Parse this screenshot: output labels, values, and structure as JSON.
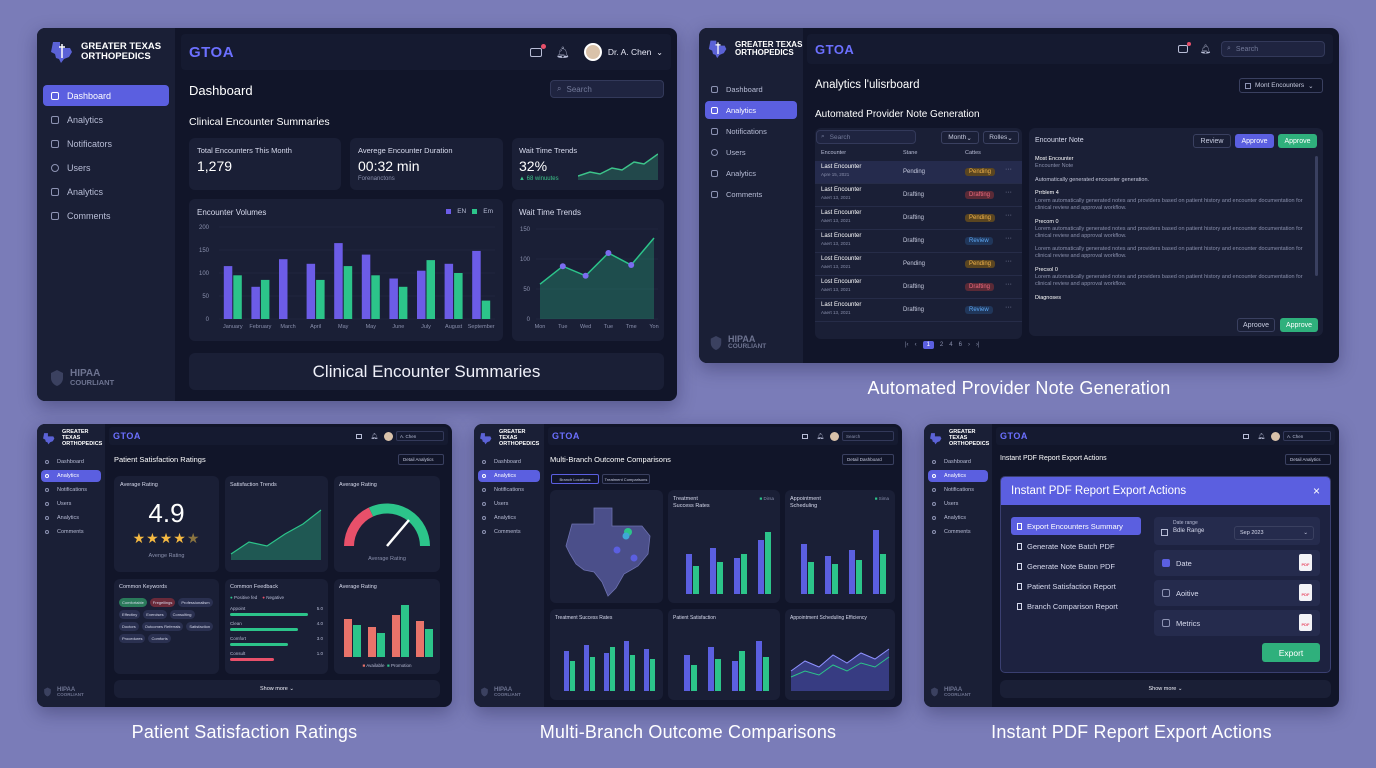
{
  "brand": {
    "line1": "GREATER TEXAS",
    "line2": "ORTHOPEDICS",
    "app": "GTOA",
    "hipaa1": "HIPAA",
    "hipaa2": "COURLIANT",
    "hipaa_small1": "HIPAA",
    "hipaa_small2": "COORLIANT"
  },
  "p1": {
    "nav": [
      "Dashboard",
      "Analytics",
      "Notificators",
      "Users",
      "Analytics",
      "Comments"
    ],
    "user": "Dr. A. Chen",
    "search": "Search",
    "title": "Dashboard",
    "section": "Clinical Encounter Summaries",
    "kpi1_label": "Total Encounters This Month",
    "kpi1_value": "1,279",
    "kpi2_label": "Averege Encounter Duration",
    "kpi2_value": "00:32 min",
    "kpi2_sub": "Forenanctons",
    "kpi3_label": "Wait Time Trends",
    "kpi3_value": "32%",
    "kpi3_sub": "▲ 68 winuutes",
    "volumes_title": "Encounter Volumes",
    "legend1": "EN",
    "legend2": "Em",
    "wait_title": "Wait Time Trends",
    "banner": "Clinical Encounter Summaries"
  },
  "p2": {
    "nav": [
      "Dashboard",
      "Analytics",
      "Notifications",
      "Users",
      "Analytics",
      "Comments"
    ],
    "search": "Search",
    "title": "Analytics l'ulisrboard",
    "filter": "Mont Encounters",
    "section": "Automated Provider Note Generation",
    "table_search": "Search",
    "month_btn": "Month",
    "roles_btn": "Rolles",
    "cols": [
      "Encounter",
      "Stane",
      "Cattes"
    ],
    "rows": [
      {
        "name": "Last Encounter",
        "date": "Apre 15, 2021",
        "stage": "Pending",
        "status": "Pending"
      },
      {
        "name": "Last Encounter",
        "date": "Aaert 13, 2021",
        "stage": "Drafting",
        "status": "Drafting"
      },
      {
        "name": "Last Encounter",
        "date": "Aaert 13, 2021",
        "stage": "Drafting",
        "status": "Pending"
      },
      {
        "name": "Last Encounter",
        "date": "Aaert 13, 2021",
        "stage": "Drafting",
        "status": "Review"
      },
      {
        "name": "Lost Encounter",
        "date": "Aaert 13, 2021",
        "stage": "Pending",
        "status": "Pending"
      },
      {
        "name": "Lost Encounter",
        "date": "Aaert 13, 2021",
        "stage": "Drafting",
        "status": "Drafting"
      },
      {
        "name": "Last Encounter",
        "date": "Aaert 13, 2021",
        "stage": "Drafting",
        "status": "Review"
      }
    ],
    "pages": [
      "1",
      "2",
      "4",
      "6"
    ],
    "note_title": "Encounter Note",
    "review": "Review",
    "approve1": "Approve",
    "approve2": "Approve",
    "note_h1": "Most Encounter",
    "note_h1b": "Encounter Note",
    "note_l1": "Automatically generated encounter generation.",
    "note_h2": "Prrblem 4",
    "note_h3": "Precom 0",
    "note_h4": "Precsol 0",
    "note_h5": "Diagnoses",
    "note_para": "Lorem automatically generated notes and providers based on patient history and encounter documentation for clinical review and approval workflow.",
    "approve_out": "Aproove",
    "approve_fill": "Approve",
    "caption": "Automated Provider Note Generation"
  },
  "p3": {
    "nav": [
      "Dashboard",
      "Analytics",
      "Notifications",
      "Users",
      "Analytics",
      "Comments"
    ],
    "user": "A. Chen",
    "title": "Patient Satisfaction Ratings",
    "filter": "Detail Analytics",
    "avg_title": "Average Rating",
    "avg_value": "4.9",
    "avg_sub": "Avenge Rating",
    "trend_title": "Satisfaction Trends",
    "gauge_title": "Average Rating",
    "gauge_sub": "Average Rating",
    "kw_title": "Common Keywords",
    "kw": [
      "Comfortable",
      "Fregellings",
      "Professionalism",
      "Effectiny",
      "Exercises",
      "Consulting",
      "Doctors",
      "Outcomes Referrals",
      "Satisfaction",
      "Procedures",
      "Comforts"
    ],
    "fb_title": "Common Feedback",
    "fb_pos": "Positive fed",
    "fb_neg": "Negative",
    "fb_rows": [
      {
        "l": "Appoint",
        "v": "5.0"
      },
      {
        "l": "Clean",
        "v": "4.0"
      },
      {
        "l": "Comfort",
        "v": "3.0"
      },
      {
        "l": "Consult",
        "v": "1.0"
      }
    ],
    "avgr_title": "Average Rating",
    "avgr_l1": "Available",
    "avgr_l2": "Promotion",
    "show_more": "Show more",
    "caption": "Patient Satisfaction Ratings"
  },
  "p4": {
    "nav": [
      "Dashboard",
      "Analytics",
      "Notifications",
      "Users",
      "Analytics",
      "Comments"
    ],
    "search": "Search",
    "title": "Multi-Branch Outcome Comparisons",
    "filter": "Detail Dashboard",
    "tab1": "Branch Locations",
    "tab2": "Treatment Comparisons",
    "c1_title": "Treatment",
    "c1_sub": "Success Rates",
    "c1_leg": "Dirsa",
    "c2_title": "Appointment",
    "c2_sub": "Scheduling",
    "c2_leg": "Sima",
    "c3_title": "Treatment Success Rates",
    "c4_title": "Patient Satisfaction",
    "c5_title": "Appointment Scheduling Efficiency",
    "caption": "Multi-Branch Outcome Comparisons"
  },
  "p5": {
    "nav": [
      "Dashboard",
      "Analytics",
      "Notifications",
      "Users",
      "Analytics",
      "Comments"
    ],
    "title": "Instant PDF Report Export Actions",
    "filter": "Detail Analytics",
    "modal_title": "Instant PDF Report Export Actions",
    "reports": [
      "Export Encounters Summary",
      "Generate Note Batch PDF",
      "Generate Note Baton PDF",
      "Patient Satisfaction Report",
      "Branch Comparison Report"
    ],
    "date_label": "Date range",
    "date_from": "Bdle Range",
    "date_to": "Sep 2023",
    "options": [
      "Date",
      "Aoitive",
      "Metrics"
    ],
    "export": "Export",
    "show_more": "Show more",
    "caption": "Instant PDF Report Export Actions"
  },
  "chart_data": [
    {
      "type": "bar",
      "title": "Encounter Volumes",
      "categories": [
        "January",
        "February",
        "March",
        "April",
        "May",
        "May",
        "June",
        "July",
        "August",
        "September"
      ],
      "series": [
        {
          "name": "EN",
          "values": [
            115,
            70,
            130,
            120,
            165,
            140,
            88,
            105,
            120,
            148
          ]
        },
        {
          "name": "Em",
          "values": [
            95,
            85,
            0,
            85,
            115,
            95,
            70,
            128,
            100,
            40
          ]
        }
      ],
      "ylim": [
        0,
        200
      ],
      "yticks": [
        0,
        50,
        100,
        150,
        200
      ]
    },
    {
      "type": "area",
      "title": "Wait Time Trends",
      "categories": [
        "Mon",
        "Tue",
        "Wed",
        "Tue",
        "Tme",
        "Yon"
      ],
      "values": [
        58,
        88,
        72,
        110,
        90,
        135
      ],
      "ylim": [
        0,
        150
      ],
      "yticks": [
        0,
        50,
        100,
        150
      ]
    }
  ]
}
